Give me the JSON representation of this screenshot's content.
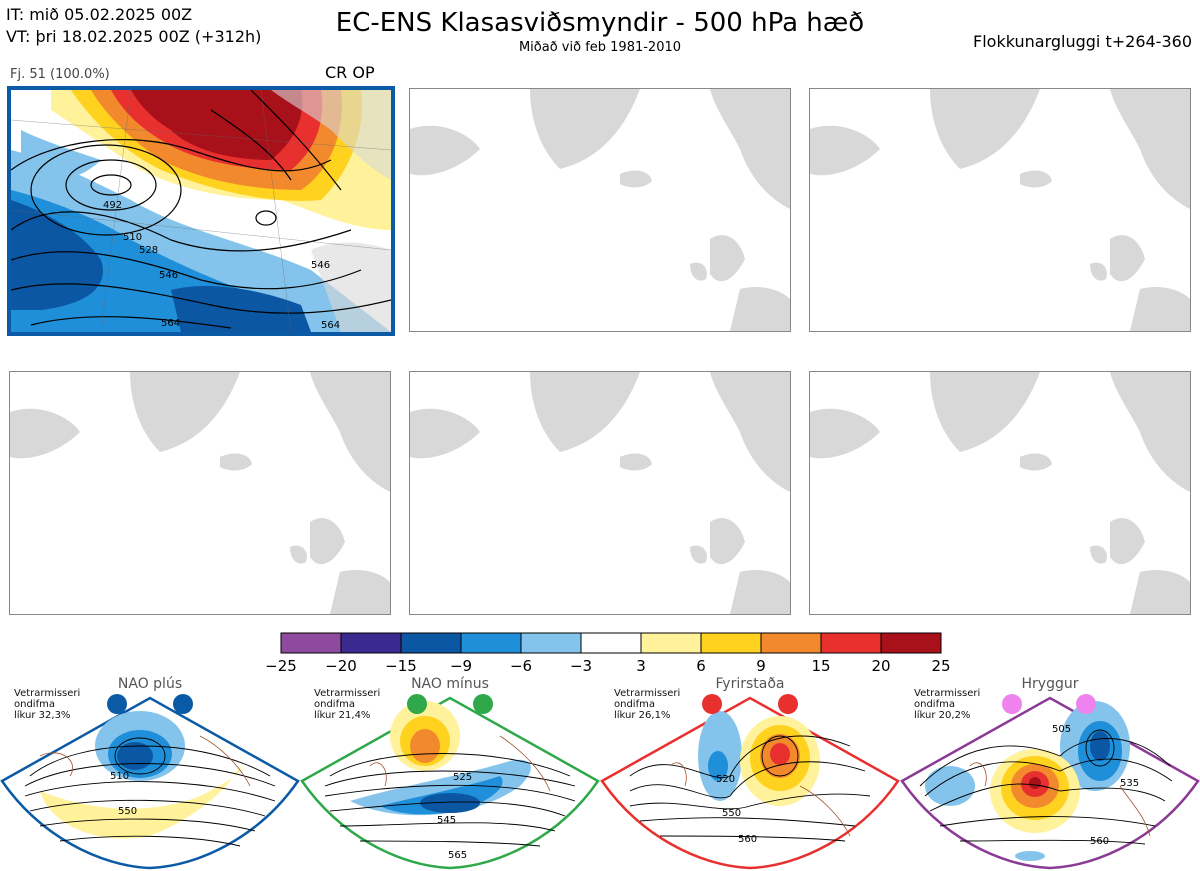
{
  "header": {
    "it_line": "IT: mið 05.02.2025 00Z",
    "vt_line": "VT: þri 18.02.2025 00Z  (+312h)",
    "title": "EC-ENS Klasasviðsmyndir - 500 hPa hæð",
    "subtitle": "Miðað við feb 1981-2010",
    "window": "Flokkunargluggi t+264-360"
  },
  "cluster_panel": {
    "label": "Fj. 51 (100.0%)",
    "tag": "CR OP",
    "contour_labels": [
      "492",
      "510",
      "528",
      "546",
      "564",
      "546",
      "564"
    ],
    "border_color": "#0a5aa5"
  },
  "colorbar": {
    "ticks": [
      "−25",
      "−20",
      "−15",
      "−9",
      "−6",
      "−3",
      "3",
      "6",
      "9",
      "15",
      "20",
      "25"
    ],
    "colors": [
      "#8e4a9e",
      "#3a2a8f",
      "#0b57a4",
      "#1e8fd8",
      "#84c4ec",
      "#ffffff",
      "#fff29a",
      "#ffd21f",
      "#f2892d",
      "#e8302f",
      "#a8101a"
    ]
  },
  "regimes": [
    {
      "name": "NAO plús",
      "line1": "Vetrarmisseri",
      "line2": "ondifma",
      "line3": "líkur 32,3%",
      "border": "#0a5aa5",
      "dot": "#0a5aa5",
      "labels": [
        "510",
        "550"
      ]
    },
    {
      "name": "NAO mínus",
      "line1": "Vetrarmisseri",
      "line2": "ondifma",
      "line3": "líkur 21,4%",
      "border": "#2fa84a",
      "dot": "#2fa84a",
      "labels": [
        "525",
        "545",
        "565"
      ]
    },
    {
      "name": "Fyrirstaða",
      "line1": "Vetrarmisseri",
      "line2": "ondifma",
      "line3": "líkur 26,1%",
      "border": "#e8302f",
      "dot": "#e8302f",
      "labels": [
        "520",
        "550",
        "560"
      ]
    },
    {
      "name": "Hryggur",
      "line1": "Vetrarmisseri",
      "line2": "ondifma",
      "line3": "líkur 20,2%",
      "border": "#8b3a96",
      "dot": "#ee82ee",
      "labels": [
        "505",
        "535",
        "560"
      ]
    }
  ]
}
